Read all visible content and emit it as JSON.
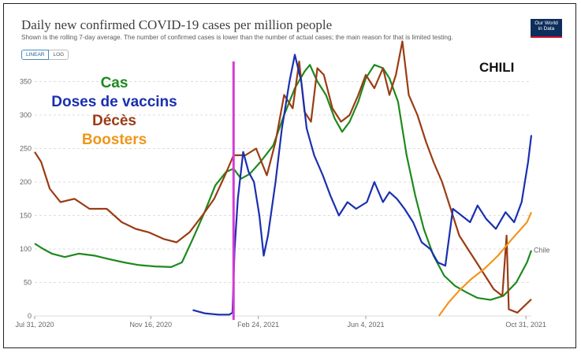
{
  "header": {
    "title": "Daily new confirmed COVID-19 cases per million people",
    "subtitle": "Shown is the rolling 7-day average. The number of confirmed cases is lower than the number of actual cases; the main reason for that is limited testing.",
    "scale_options": [
      "LINEAR",
      "LOG"
    ],
    "selected_scale": "LINEAR",
    "logo_text": "Our World in Data",
    "country_label": "CHILI"
  },
  "legend": [
    {
      "label": "Cas",
      "color": "#1e8a1e"
    },
    {
      "label": "Doses de vaccins",
      "color": "#1a2fb0"
    },
    {
      "label": "Décès",
      "color": "#9a3c14"
    },
    {
      "label": "Boosters",
      "color": "#f0961a"
    }
  ],
  "colors": {
    "marker_line": "#d63bd6"
  },
  "chart_data": {
    "type": "line",
    "title": "Daily new confirmed COVID-19 cases per million people",
    "x_ticks": [
      "Jul 31, 2020",
      "Nov 16, 2020",
      "Feb 24, 2021",
      "Jun 4, 2021",
      "Oct 31, 2021"
    ],
    "x_range": [
      "2020-07-31",
      "2021-11-05"
    ],
    "y_ticks": [
      0,
      50,
      100,
      150,
      200,
      250,
      300,
      350
    ],
    "ylim": [
      0,
      380
    ],
    "grid": true,
    "end_label": "Chile",
    "vertical_marker": "2021-02-01",
    "series": [
      {
        "name": "Cas",
        "color": "#1e8a1e",
        "points": [
          [
            "2020-07-31",
            108
          ],
          [
            "2020-08-08",
            100
          ],
          [
            "2020-08-16",
            93
          ],
          [
            "2020-08-28",
            88
          ],
          [
            "2020-09-10",
            93
          ],
          [
            "2020-09-25",
            90
          ],
          [
            "2020-10-08",
            85
          ],
          [
            "2020-10-22",
            80
          ],
          [
            "2020-11-05",
            76
          ],
          [
            "2020-11-20",
            74
          ],
          [
            "2020-12-05",
            73
          ],
          [
            "2020-12-15",
            80
          ],
          [
            "2020-12-25",
            115
          ],
          [
            "2021-01-05",
            155
          ],
          [
            "2021-01-15",
            195
          ],
          [
            "2021-01-25",
            215
          ],
          [
            "2021-02-01",
            220
          ],
          [
            "2021-02-08",
            205
          ],
          [
            "2021-02-16",
            212
          ],
          [
            "2021-02-26",
            230
          ],
          [
            "2021-03-10",
            255
          ],
          [
            "2021-03-20",
            300
          ],
          [
            "2021-03-30",
            340
          ],
          [
            "2021-04-08",
            365
          ],
          [
            "2021-04-13",
            375
          ],
          [
            "2021-04-20",
            350
          ],
          [
            "2021-04-28",
            330
          ],
          [
            "2021-05-06",
            295
          ],
          [
            "2021-05-13",
            275
          ],
          [
            "2021-05-20",
            290
          ],
          [
            "2021-05-28",
            320
          ],
          [
            "2021-06-04",
            355
          ],
          [
            "2021-06-12",
            375
          ],
          [
            "2021-06-20",
            370
          ],
          [
            "2021-06-26",
            355
          ],
          [
            "2021-07-04",
            320
          ],
          [
            "2021-07-12",
            240
          ],
          [
            "2021-07-20",
            180
          ],
          [
            "2021-07-28",
            130
          ],
          [
            "2021-08-06",
            90
          ],
          [
            "2021-08-16",
            60
          ],
          [
            "2021-08-26",
            45
          ],
          [
            "2021-09-06",
            35
          ],
          [
            "2021-09-16",
            27
          ],
          [
            "2021-09-28",
            24
          ],
          [
            "2021-10-10",
            30
          ],
          [
            "2021-10-22",
            50
          ],
          [
            "2021-11-01",
            80
          ],
          [
            "2021-11-05",
            98
          ]
        ]
      },
      {
        "name": "Doses de vaccins",
        "color": "#1a2fb0",
        "points": [
          [
            "2020-12-25",
            9
          ],
          [
            "2021-01-05",
            4
          ],
          [
            "2021-01-18",
            2
          ],
          [
            "2021-01-28",
            2
          ],
          [
            "2021-01-31",
            5
          ],
          [
            "2021-02-02",
            100
          ],
          [
            "2021-02-05",
            175
          ],
          [
            "2021-02-10",
            245
          ],
          [
            "2021-02-15",
            215
          ],
          [
            "2021-02-20",
            200
          ],
          [
            "2021-02-25",
            150
          ],
          [
            "2021-03-01",
            90
          ],
          [
            "2021-03-05",
            120
          ],
          [
            "2021-03-12",
            200
          ],
          [
            "2021-03-18",
            280
          ],
          [
            "2021-03-25",
            350
          ],
          [
            "2021-03-30",
            390
          ],
          [
            "2021-04-05",
            350
          ],
          [
            "2021-04-10",
            280
          ],
          [
            "2021-04-17",
            240
          ],
          [
            "2021-04-25",
            210
          ],
          [
            "2021-05-02",
            180
          ],
          [
            "2021-05-10",
            150
          ],
          [
            "2021-05-18",
            170
          ],
          [
            "2021-05-26",
            160
          ],
          [
            "2021-06-05",
            170
          ],
          [
            "2021-06-12",
            200
          ],
          [
            "2021-06-20",
            170
          ],
          [
            "2021-06-26",
            185
          ],
          [
            "2021-07-03",
            175
          ],
          [
            "2021-07-10",
            160
          ],
          [
            "2021-07-18",
            140
          ],
          [
            "2021-07-26",
            110
          ],
          [
            "2021-08-03",
            100
          ],
          [
            "2021-08-10",
            80
          ],
          [
            "2021-08-17",
            75
          ],
          [
            "2021-08-24",
            160
          ],
          [
            "2021-09-01",
            150
          ],
          [
            "2021-09-09",
            140
          ],
          [
            "2021-09-16",
            165
          ],
          [
            "2021-09-24",
            145
          ],
          [
            "2021-10-03",
            130
          ],
          [
            "2021-10-12",
            155
          ],
          [
            "2021-10-20",
            140
          ],
          [
            "2021-10-27",
            170
          ],
          [
            "2021-11-02",
            230
          ],
          [
            "2021-11-05",
            270
          ]
        ]
      },
      {
        "name": "Décès",
        "color": "#9a3c14",
        "points": [
          [
            "2020-07-31",
            245
          ],
          [
            "2020-08-06",
            230
          ],
          [
            "2020-08-14",
            190
          ],
          [
            "2020-08-24",
            170
          ],
          [
            "2020-09-06",
            175
          ],
          [
            "2020-09-20",
            160
          ],
          [
            "2020-10-06",
            160
          ],
          [
            "2020-10-20",
            140
          ],
          [
            "2020-11-02",
            130
          ],
          [
            "2020-11-14",
            125
          ],
          [
            "2020-11-28",
            115
          ],
          [
            "2020-12-10",
            110
          ],
          [
            "2020-12-22",
            125
          ],
          [
            "2021-01-03",
            150
          ],
          [
            "2021-01-14",
            175
          ],
          [
            "2021-01-24",
            210
          ],
          [
            "2021-02-01",
            240
          ],
          [
            "2021-02-12",
            240
          ],
          [
            "2021-02-22",
            250
          ],
          [
            "2021-03-04",
            210
          ],
          [
            "2021-03-12",
            260
          ],
          [
            "2021-03-20",
            330
          ],
          [
            "2021-03-28",
            310
          ],
          [
            "2021-04-03",
            380
          ],
          [
            "2021-04-08",
            305
          ],
          [
            "2021-04-14",
            290
          ],
          [
            "2021-04-20",
            370
          ],
          [
            "2021-04-26",
            360
          ],
          [
            "2021-05-04",
            310
          ],
          [
            "2021-05-12",
            290
          ],
          [
            "2021-05-20",
            300
          ],
          [
            "2021-05-28",
            330
          ],
          [
            "2021-06-04",
            360
          ],
          [
            "2021-06-12",
            340
          ],
          [
            "2021-06-20",
            370
          ],
          [
            "2021-06-26",
            330
          ],
          [
            "2021-07-02",
            360
          ],
          [
            "2021-07-08",
            410
          ],
          [
            "2021-07-14",
            330
          ],
          [
            "2021-07-22",
            300
          ],
          [
            "2021-07-30",
            260
          ],
          [
            "2021-08-06",
            230
          ],
          [
            "2021-08-14",
            200
          ],
          [
            "2021-08-22",
            160
          ],
          [
            "2021-08-30",
            120
          ],
          [
            "2021-09-07",
            100
          ],
          [
            "2021-09-15",
            80
          ],
          [
            "2021-09-23",
            60
          ],
          [
            "2021-10-01",
            40
          ],
          [
            "2021-10-09",
            30
          ],
          [
            "2021-10-13",
            120
          ],
          [
            "2021-10-15",
            10
          ],
          [
            "2021-10-23",
            5
          ],
          [
            "2021-11-05",
            25
          ]
        ]
      },
      {
        "name": "Boosters",
        "color": "#f0961a",
        "points": [
          [
            "2021-08-11",
            0
          ],
          [
            "2021-08-20",
            20
          ],
          [
            "2021-08-30",
            38
          ],
          [
            "2021-09-10",
            55
          ],
          [
            "2021-09-22",
            70
          ],
          [
            "2021-10-05",
            90
          ],
          [
            "2021-10-18",
            115
          ],
          [
            "2021-11-01",
            140
          ],
          [
            "2021-11-05",
            155
          ]
        ]
      }
    ]
  }
}
